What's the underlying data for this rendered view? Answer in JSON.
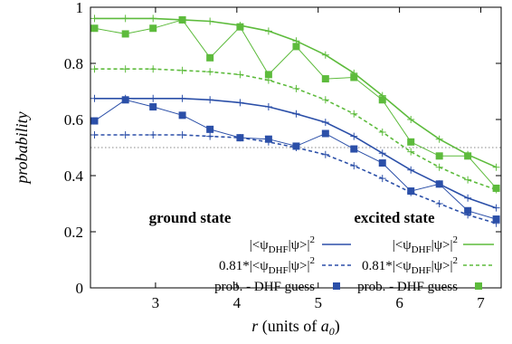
{
  "chart_data": {
    "type": "line",
    "xlim": [
      2.2,
      7.25
    ],
    "ylim": [
      0,
      1
    ],
    "x_ticks": [
      "3",
      "4",
      "5",
      "6",
      "7"
    ],
    "y_ticks": [
      "0",
      "0.2",
      "0.4",
      "0.6",
      "0.8",
      "1"
    ],
    "ylabel": "probability",
    "xlabel": {
      "r": "r",
      "rest": " (units of ",
      "a": "a",
      "sub": "0",
      "close": ")"
    },
    "reference_line_y": 0.5,
    "grid": false,
    "colors": {
      "ground": "#2b4fa8",
      "excited": "#5dbb3c",
      "ref": "#888888"
    },
    "legend_groups": [
      {
        "id": "ground",
        "heading": "ground state",
        "placement": "bottom-left",
        "entries": [
          {
            "kind": "solid",
            "prefix": "",
            "bra": "|<ψ",
            "sub": "DHF",
            "ket": "|ψ>|",
            "sup": "2"
          },
          {
            "kind": "dashed",
            "prefix": "0.81*",
            "bra": "|<ψ",
            "sub": "DHF",
            "ket": "|ψ>|",
            "sup": "2"
          },
          {
            "kind": "marker",
            "text": "prob. - DHF guess"
          }
        ]
      },
      {
        "id": "excited",
        "heading": "excited state",
        "placement": "bottom-right",
        "entries": [
          {
            "kind": "solid",
            "prefix": "",
            "bra": "|<ψ",
            "sub": "DHF",
            "ket": "|ψ>|",
            "sup": "2"
          },
          {
            "kind": "dashed",
            "prefix": "0.81*",
            "bra": "|<ψ",
            "sub": "DHF",
            "ket": "|ψ>|",
            "sup": "2"
          },
          {
            "kind": "marker",
            "text": "prob. - DHF guess"
          }
        ]
      }
    ],
    "series": [
      {
        "group": "ground",
        "style": "solid",
        "x": [
          2.25,
          2.63,
          2.97,
          3.33,
          3.67,
          4.04,
          4.39,
          4.73,
          5.09,
          5.44,
          5.79,
          6.14,
          6.49,
          6.84,
          7.19
        ],
        "values": [
          0.675,
          0.675,
          0.675,
          0.675,
          0.67,
          0.66,
          0.645,
          0.62,
          0.59,
          0.54,
          0.48,
          0.42,
          0.37,
          0.32,
          0.285
        ]
      },
      {
        "group": "ground",
        "style": "dashed",
        "x": [
          2.25,
          2.63,
          2.97,
          3.33,
          3.67,
          4.04,
          4.39,
          4.73,
          5.09,
          5.44,
          5.79,
          6.14,
          6.49,
          6.84,
          7.19
        ],
        "values": [
          0.545,
          0.545,
          0.545,
          0.545,
          0.54,
          0.535,
          0.52,
          0.5,
          0.475,
          0.435,
          0.39,
          0.34,
          0.3,
          0.26,
          0.23
        ]
      },
      {
        "group": "ground",
        "style": "marker",
        "x": [
          2.25,
          2.63,
          2.97,
          3.33,
          3.67,
          4.04,
          4.39,
          4.73,
          5.09,
          5.44,
          5.79,
          6.14,
          6.49,
          6.84,
          7.19
        ],
        "values": [
          0.595,
          0.67,
          0.645,
          0.615,
          0.565,
          0.535,
          0.53,
          0.505,
          0.55,
          0.495,
          0.445,
          0.345,
          0.37,
          0.275,
          0.245
        ]
      },
      {
        "group": "excited",
        "style": "solid",
        "x": [
          2.25,
          2.63,
          2.97,
          3.33,
          3.67,
          4.04,
          4.39,
          4.73,
          5.09,
          5.44,
          5.79,
          6.14,
          6.49,
          6.84,
          7.19
        ],
        "values": [
          0.96,
          0.96,
          0.96,
          0.955,
          0.95,
          0.935,
          0.915,
          0.88,
          0.83,
          0.765,
          0.685,
          0.6,
          0.53,
          0.475,
          0.43
        ]
      },
      {
        "group": "excited",
        "style": "dashed",
        "x": [
          2.25,
          2.63,
          2.97,
          3.33,
          3.67,
          4.04,
          4.39,
          4.73,
          5.09,
          5.44,
          5.79,
          6.14,
          6.49,
          6.84,
          7.19
        ],
        "values": [
          0.78,
          0.78,
          0.78,
          0.775,
          0.77,
          0.76,
          0.74,
          0.71,
          0.67,
          0.62,
          0.555,
          0.485,
          0.43,
          0.385,
          0.35
        ]
      },
      {
        "group": "excited",
        "style": "marker",
        "x": [
          2.25,
          2.63,
          2.97,
          3.33,
          3.67,
          4.04,
          4.39,
          4.73,
          5.09,
          5.44,
          5.79,
          6.14,
          6.49,
          6.84,
          7.19
        ],
        "values": [
          0.925,
          0.905,
          0.925,
          0.955,
          0.82,
          0.93,
          0.76,
          0.86,
          0.745,
          0.75,
          0.67,
          0.52,
          0.47,
          0.47,
          0.355
        ]
      }
    ]
  }
}
